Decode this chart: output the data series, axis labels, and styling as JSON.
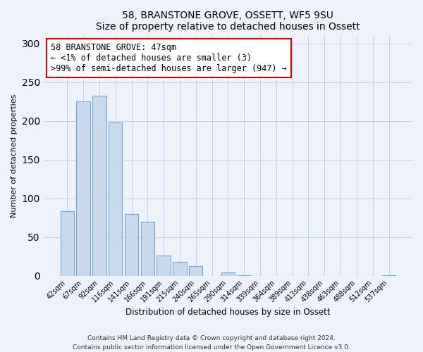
{
  "title1": "58, BRANSTONE GROVE, OSSETT, WF5 9SU",
  "title2": "Size of property relative to detached houses in Ossett",
  "xlabel": "Distribution of detached houses by size in Ossett",
  "ylabel": "Number of detached properties",
  "bar_labels": [
    "42sqm",
    "67sqm",
    "92sqm",
    "116sqm",
    "141sqm",
    "166sqm",
    "191sqm",
    "215sqm",
    "240sqm",
    "265sqm",
    "290sqm",
    "314sqm",
    "339sqm",
    "364sqm",
    "389sqm",
    "413sqm",
    "438sqm",
    "463sqm",
    "488sqm",
    "512sqm",
    "537sqm"
  ],
  "bar_values": [
    83,
    225,
    232,
    198,
    80,
    70,
    26,
    18,
    12,
    0,
    4,
    1,
    0,
    0,
    0,
    0,
    0,
    0,
    0,
    0,
    1
  ],
  "bar_color": "#c8d9ee",
  "bar_edge_color": "#6fa8d0",
  "ylim": [
    0,
    310
  ],
  "yticks": [
    0,
    50,
    100,
    150,
    200,
    250,
    300
  ],
  "annotation_title": "58 BRANSTONE GROVE: 47sqm",
  "annotation_line1": "← <1% of detached houses are smaller (3)",
  "annotation_line2": ">99% of semi-detached houses are larger (947) →",
  "footer1": "Contains HM Land Registry data © Crown copyright and database right 2024.",
  "footer2": "Contains public sector information licensed under the Open Government Licence v3.0.",
  "bg_color": "#eef2fb",
  "plot_bg_color": "#eef2fb",
  "grid_color": "#c5cfe8"
}
